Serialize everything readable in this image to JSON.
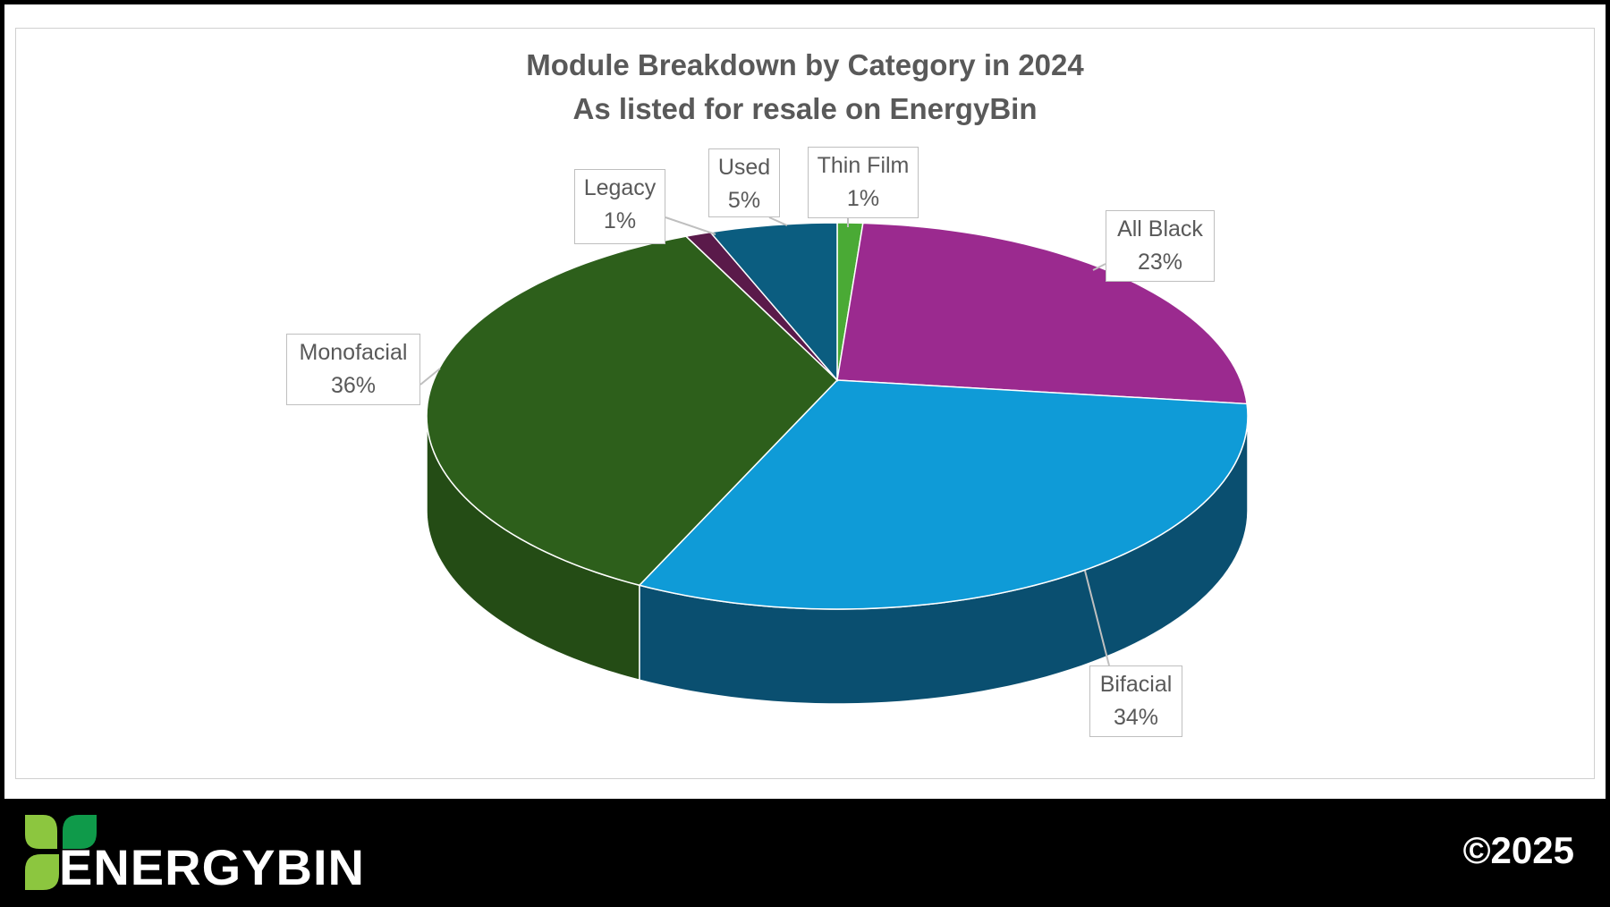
{
  "chart_data": {
    "type": "pie",
    "style": "3d",
    "title": "Module Breakdown by Category in 2024",
    "subtitle": "As listed for resale on EnergyBin",
    "slices": [
      {
        "label": "Thin Film",
        "value": 1,
        "display": "1%",
        "color": "#4aaa35",
        "side": "#2f7a22"
      },
      {
        "label": "All Black",
        "value": 23,
        "display": "23%",
        "color": "#9b2a8f",
        "side": "#6a1c62"
      },
      {
        "label": "Bifacial",
        "value": 34,
        "display": "34%",
        "color": "#0f9bd7",
        "side": "#0a4f70"
      },
      {
        "label": "Monofacial",
        "value": 36,
        "display": "36%",
        "color": "#2d5f1b",
        "side": "#244c15"
      },
      {
        "label": "Legacy",
        "value": 1,
        "display": "1%",
        "color": "#5a1a4a",
        "side": "#3f1234"
      },
      {
        "label": "Used",
        "value": 5,
        "display": "5%",
        "color": "#0b5d80",
        "side": "#08435d"
      }
    ],
    "legend": "none",
    "data_labels": "callouts"
  },
  "footer": {
    "brand": "ENERGYBIN",
    "copyright": "©2025"
  }
}
